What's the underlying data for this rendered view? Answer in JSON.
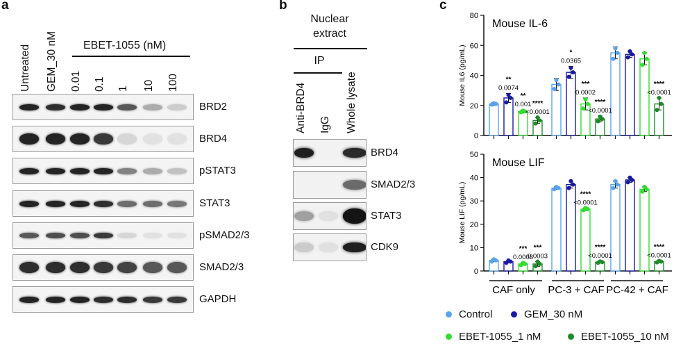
{
  "panel_a": {
    "label": "a",
    "lanes": [
      "Untreated",
      "GEM_30 nM",
      "0.01",
      "0.1",
      "1",
      "10",
      "100"
    ],
    "treatment_group": "EBET-1055 (nM)",
    "blots": [
      {
        "name": "BRD2",
        "intensity": [
          0.95,
          0.9,
          0.95,
          0.95,
          0.7,
          0.3,
          0.15
        ],
        "thickness": 9
      },
      {
        "name": "BRD4",
        "intensity": [
          0.95,
          0.95,
          0.95,
          0.85,
          0.1,
          0.05,
          0.05
        ],
        "thickness": 16
      },
      {
        "name": "pSTAT3",
        "intensity": [
          0.95,
          0.95,
          0.95,
          0.95,
          0.5,
          0.3,
          0.2
        ],
        "thickness": 9
      },
      {
        "name": "STAT3",
        "intensity": [
          0.95,
          0.95,
          0.95,
          0.9,
          0.6,
          0.6,
          0.55
        ],
        "thickness": 9
      },
      {
        "name": "pSMAD2/3",
        "intensity": [
          0.7,
          0.75,
          0.75,
          0.85,
          0.1,
          0.05,
          0.05
        ],
        "thickness": 8
      },
      {
        "name": "SMAD2/3",
        "intensity": [
          0.9,
          0.9,
          0.9,
          0.85,
          0.8,
          0.7,
          0.7
        ],
        "thickness": 16
      },
      {
        "name": "GAPDH",
        "intensity": [
          0.95,
          0.95,
          0.95,
          0.9,
          0.9,
          0.85,
          0.85
        ],
        "thickness": 9
      }
    ]
  },
  "panel_b": {
    "label": "b",
    "header": "Nuclear\nextract",
    "ip_label": "IP",
    "lanes": [
      "Anti-BRD4",
      "IgG",
      "Whole lysate"
    ],
    "blots": [
      {
        "name": "BRD4",
        "intensity": [
          0.95,
          0.0,
          0.9
        ]
      },
      {
        "name": "SMAD2/3",
        "intensity": [
          0.0,
          0.0,
          0.6
        ]
      },
      {
        "name": "STAT3",
        "intensity": [
          0.35,
          0.05,
          1.0
        ]
      },
      {
        "name": "CDK9",
        "intensity": [
          0.15,
          0.05,
          0.95
        ]
      }
    ]
  },
  "panel_c": {
    "label": "c",
    "groups": [
      "CAF only",
      "PC-3 + CAF",
      "PC-42 + CAF"
    ],
    "legend": [
      {
        "name": "Control",
        "color": "#5aa2ec"
      },
      {
        "name": "GEM_30 nM",
        "color": "#1a1aa6"
      },
      {
        "name": "EBET-1055_1 nM",
        "color": "#33dd33"
      },
      {
        "name": "EBET-1055_10 nM",
        "color": "#1f8a2a"
      }
    ]
  },
  "chart_data": [
    {
      "type": "bar",
      "title": "Mouse IL-6",
      "ylabel": "Mouse IL6 (pg/mL)",
      "ylim": [
        0,
        80
      ],
      "yticks": [
        0,
        20,
        40,
        60,
        80
      ],
      "categories": [
        "CAF only",
        "PC-3 + CAF",
        "PC-42 + CAF"
      ],
      "series": [
        {
          "name": "Control",
          "values": [
            21,
            34,
            55
          ],
          "err": [
            1,
            4,
            4
          ],
          "points": [
            [
              20.5,
              21,
              21.5
            ],
            [
              31,
              34,
              37
            ],
            [
              51,
              55,
              58
            ]
          ]
        },
        {
          "name": "GEM_30 nM",
          "values": [
            25,
            42,
            54
          ],
          "err": [
            3,
            4,
            2
          ],
          "points": [
            [
              22,
              25,
              27
            ],
            [
              39,
              42,
              45
            ],
            [
              52,
              54,
              56
            ]
          ]
        },
        {
          "name": "EBET-1055_1 nM",
          "values": [
            16,
            21,
            51
          ],
          "err": [
            1,
            4,
            4
          ],
          "points": [
            [
              15.5,
              16,
              16.5
            ],
            [
              18,
              21,
              24
            ],
            [
              47,
              51,
              55
            ]
          ]
        },
        {
          "name": "EBET-1055_10 nM",
          "values": [
            10,
            11,
            21
          ],
          "err": [
            2,
            2,
            4
          ],
          "points": [
            [
              8,
              10,
              12
            ],
            [
              9.5,
              11,
              12.5
            ],
            [
              17,
              21,
              25
            ]
          ]
        }
      ],
      "annotations": [
        {
          "group": 0,
          "series": 1,
          "stars": "**",
          "p": "0.0074"
        },
        {
          "group": 0,
          "series": 2,
          "stars": "**",
          "p": "0.001"
        },
        {
          "group": 0,
          "series": 3,
          "stars": "****",
          "p": "<0.0001"
        },
        {
          "group": 1,
          "series": 1,
          "stars": "*",
          "p": "0.0365"
        },
        {
          "group": 1,
          "series": 2,
          "stars": "***",
          "p": "0.0002"
        },
        {
          "group": 1,
          "series": 3,
          "stars": "****",
          "p": "<0.0001"
        },
        {
          "group": 2,
          "series": 3,
          "stars": "****",
          "p": "<0.0001"
        }
      ]
    },
    {
      "type": "bar",
      "title": "Mouse LIF",
      "ylabel": "Mouse LIF (pg/mL)",
      "ylim": [
        0,
        50
      ],
      "yticks": [
        0,
        10,
        20,
        30,
        40,
        50
      ],
      "categories": [
        "CAF only",
        "PC-3 + CAF",
        "PC-42 + CAF"
      ],
      "series": [
        {
          "name": "Control",
          "values": [
            4.5,
            35.5,
            37
          ],
          "err": [
            0.5,
            0.5,
            1.5
          ],
          "points": [
            [
              4,
              4.5,
              5
            ],
            [
              35,
              35.5,
              36
            ],
            [
              35.5,
              37,
              38.5
            ]
          ]
        },
        {
          "name": "GEM_30 nM",
          "values": [
            4,
            37,
            39
          ],
          "err": [
            0.5,
            1.5,
            1
          ],
          "points": [
            [
              3.5,
              4,
              4.5
            ],
            [
              35.5,
              37,
              38.5
            ],
            [
              38,
              39,
              40
            ]
          ]
        },
        {
          "name": "EBET-1055_1 nM",
          "values": [
            3,
            26.5,
            35
          ],
          "err": [
            0.5,
            0.5,
            1
          ],
          "points": [
            [
              2.5,
              3,
              3.5
            ],
            [
              26,
              26.5,
              27
            ],
            [
              34,
              35,
              36
            ]
          ]
        },
        {
          "name": "EBET-1055_10 nM",
          "values": [
            3,
            3.8,
            4
          ],
          "err": [
            1,
            0.3,
            0.3
          ],
          "points": [
            [
              2,
              3,
              4
            ],
            [
              3.5,
              3.8,
              4.1
            ],
            [
              3.7,
              4,
              4.3
            ]
          ]
        }
      ],
      "annotations": [
        {
          "group": 0,
          "series": 2,
          "stars": "***",
          "p": "0.0003"
        },
        {
          "group": 0,
          "series": 3,
          "stars": "***",
          "p": "0.0003"
        },
        {
          "group": 1,
          "series": 2,
          "stars": "****",
          "p": "<0.0001"
        },
        {
          "group": 1,
          "series": 3,
          "stars": "****",
          "p": "<0.0001"
        },
        {
          "group": 2,
          "series": 3,
          "stars": "****",
          "p": "<0.0001"
        }
      ]
    }
  ]
}
